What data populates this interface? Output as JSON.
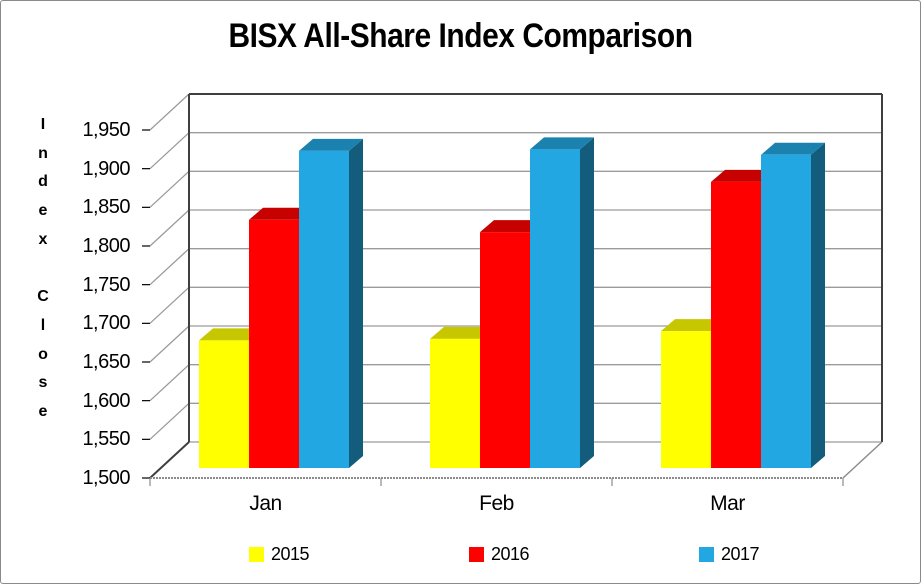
{
  "title": "BISX All-Share Index Comparison",
  "y_axis": {
    "title": "Index Close",
    "tick_labels": [
      "1,950",
      "1,900",
      "1,850",
      "1,800",
      "1,750",
      "1,700",
      "1,650",
      "1,600",
      "1,550",
      "1,500"
    ],
    "tick_values": [
      1950,
      1900,
      1850,
      1800,
      1750,
      1700,
      1650,
      1600,
      1550,
      1500
    ]
  },
  "x_axis": {
    "categories": [
      "Jan",
      "Feb",
      "Mar"
    ]
  },
  "legend": {
    "items": [
      {
        "label": "2015",
        "color": "#FFFF00"
      },
      {
        "label": "2016",
        "color": "#FF0000"
      },
      {
        "label": "2017",
        "color": "#22A7E2"
      }
    ]
  },
  "colors": {
    "series_2015": "#FFFF00",
    "series_2016": "#FF0000",
    "series_2017": "#22A7E2",
    "gridline": "#9b9b9b",
    "wall_edge": "#3f3f3f",
    "axis_minor": "#8c8c8c",
    "text": "#000000",
    "frame_border": "#8a8a8a",
    "background": "#ffffff"
  },
  "chart_data": {
    "type": "bar",
    "style": "3d-column",
    "title": "BISX All-Share Index Comparison",
    "categories": [
      "Jan",
      "Feb",
      "Mar"
    ],
    "series": [
      {
        "name": "2015",
        "color": "#FFFF00",
        "values": [
          1665,
          1667,
          1677
        ]
      },
      {
        "name": "2016",
        "color": "#FF0000",
        "values": [
          1821,
          1805,
          1870
        ]
      },
      {
        "name": "2017",
        "color": "#22A7E2",
        "values": [
          1910,
          1912,
          1905
        ]
      }
    ],
    "xlabel": "",
    "ylabel": "Index Close",
    "ylim": [
      1500,
      1950
    ],
    "ytick_step": 50,
    "grid": true,
    "legend_position": "bottom"
  }
}
